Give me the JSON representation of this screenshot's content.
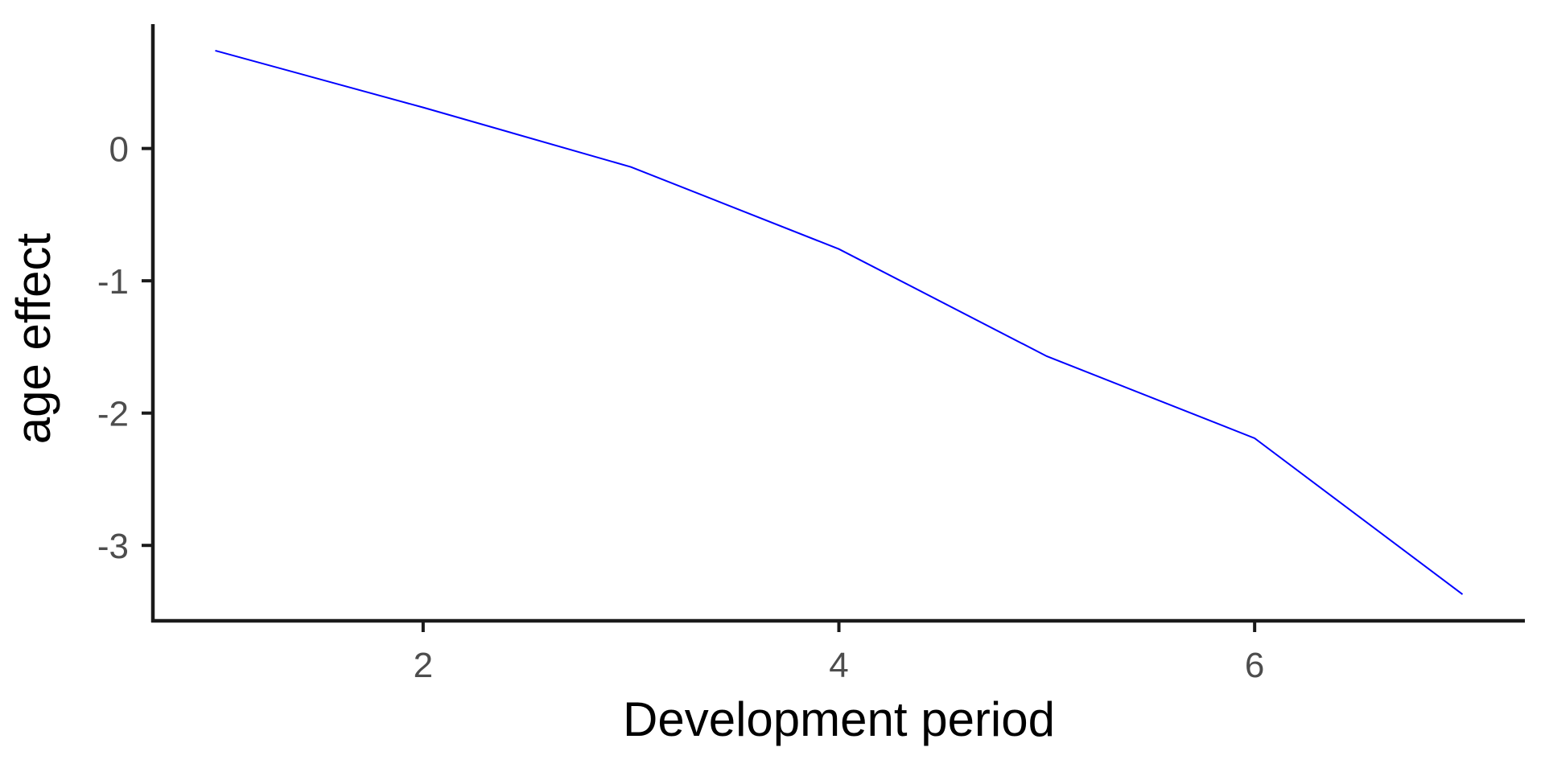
{
  "chart_data": {
    "type": "line",
    "title": "",
    "xlabel": "Development period",
    "ylabel": "age effect",
    "x": [
      1,
      2,
      3,
      4,
      5,
      6,
      7
    ],
    "series": [
      {
        "values": [
          0.74,
          0.31,
          -0.14,
          -0.76,
          -1.57,
          -2.19,
          -3.37
        ]
      }
    ],
    "xlim": [
      0.7,
      7.3
    ],
    "ylim": [
      -3.57,
      0.94
    ],
    "xticks": [
      2,
      4,
      6
    ],
    "xtick_labels": [
      "2",
      "4",
      "6"
    ],
    "yticks": [
      0,
      -1,
      -2,
      -3
    ],
    "ytick_labels": [
      "0",
      "-1",
      "-2",
      "-3"
    ],
    "grid": false,
    "legend": "none",
    "line_color": "#0000ff"
  }
}
